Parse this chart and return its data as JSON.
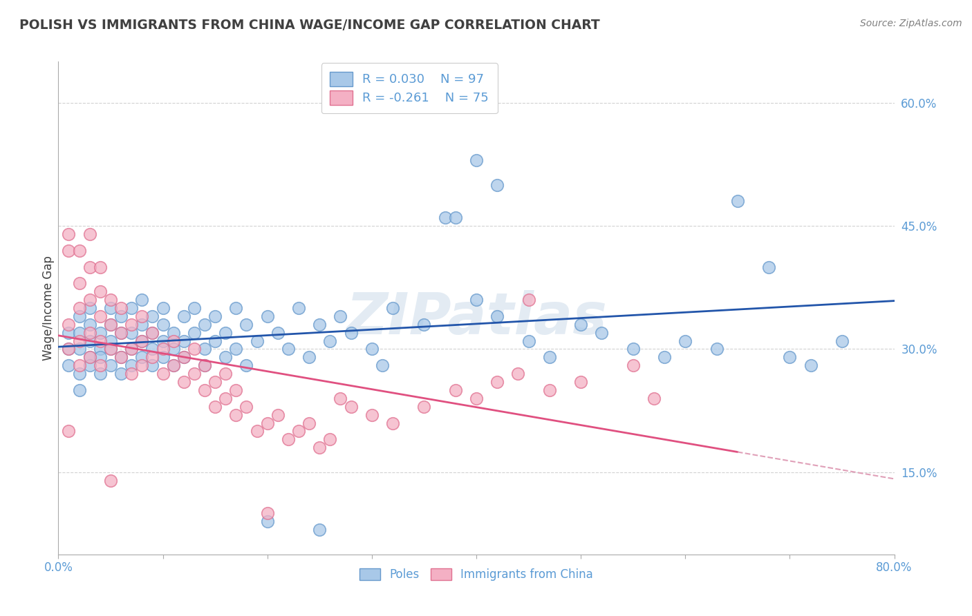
{
  "title": "POLISH VS IMMIGRANTS FROM CHINA WAGE/INCOME GAP CORRELATION CHART",
  "source": "Source: ZipAtlas.com",
  "ylabel": "Wage/Income Gap",
  "x_min": 0.0,
  "x_max": 0.8,
  "y_min": 0.05,
  "y_max": 0.65,
  "x_ticks": [
    0.0,
    0.1,
    0.2,
    0.3,
    0.4,
    0.5,
    0.6,
    0.7,
    0.8
  ],
  "x_tick_labels": [
    "0.0%",
    "",
    "",
    "",
    "",
    "",
    "",
    "",
    "80.0%"
  ],
  "y_ticks": [
    0.15,
    0.3,
    0.45,
    0.6
  ],
  "y_tick_labels": [
    "15.0%",
    "30.0%",
    "45.0%",
    "60.0%"
  ],
  "legend_labels": [
    "Poles",
    "Immigrants from China"
  ],
  "blue_color": "#a8c8e8",
  "pink_color": "#f4b0c4",
  "blue_edge_color": "#6699cc",
  "pink_edge_color": "#e07090",
  "blue_line_color": "#2255aa",
  "pink_line_color": "#e05080",
  "pink_line_dash_color": "#e0a0b8",
  "watermark": "ZIPatlas",
  "R_blue": 0.03,
  "N_blue": 97,
  "R_pink": -0.261,
  "N_pink": 75,
  "blue_scatter": [
    [
      0.01,
      0.28
    ],
    [
      0.01,
      0.3
    ],
    [
      0.01,
      0.32
    ],
    [
      0.02,
      0.27
    ],
    [
      0.02,
      0.3
    ],
    [
      0.02,
      0.32
    ],
    [
      0.02,
      0.34
    ],
    [
      0.02,
      0.25
    ],
    [
      0.03,
      0.29
    ],
    [
      0.03,
      0.31
    ],
    [
      0.03,
      0.28
    ],
    [
      0.03,
      0.33
    ],
    [
      0.03,
      0.35
    ],
    [
      0.04,
      0.3
    ],
    [
      0.04,
      0.27
    ],
    [
      0.04,
      0.32
    ],
    [
      0.04,
      0.29
    ],
    [
      0.05,
      0.31
    ],
    [
      0.05,
      0.33
    ],
    [
      0.05,
      0.28
    ],
    [
      0.05,
      0.35
    ],
    [
      0.05,
      0.3
    ],
    [
      0.06,
      0.32
    ],
    [
      0.06,
      0.29
    ],
    [
      0.06,
      0.34
    ],
    [
      0.06,
      0.27
    ],
    [
      0.07,
      0.3
    ],
    [
      0.07,
      0.32
    ],
    [
      0.07,
      0.35
    ],
    [
      0.07,
      0.28
    ],
    [
      0.08,
      0.31
    ],
    [
      0.08,
      0.33
    ],
    [
      0.08,
      0.29
    ],
    [
      0.08,
      0.36
    ],
    [
      0.09,
      0.3
    ],
    [
      0.09,
      0.32
    ],
    [
      0.09,
      0.28
    ],
    [
      0.09,
      0.34
    ],
    [
      0.1,
      0.31
    ],
    [
      0.1,
      0.29
    ],
    [
      0.1,
      0.33
    ],
    [
      0.1,
      0.35
    ],
    [
      0.11,
      0.3
    ],
    [
      0.11,
      0.32
    ],
    [
      0.11,
      0.28
    ],
    [
      0.12,
      0.34
    ],
    [
      0.12,
      0.31
    ],
    [
      0.12,
      0.29
    ],
    [
      0.13,
      0.32
    ],
    [
      0.13,
      0.35
    ],
    [
      0.14,
      0.3
    ],
    [
      0.14,
      0.28
    ],
    [
      0.14,
      0.33
    ],
    [
      0.15,
      0.31
    ],
    [
      0.15,
      0.34
    ],
    [
      0.16,
      0.29
    ],
    [
      0.16,
      0.32
    ],
    [
      0.17,
      0.35
    ],
    [
      0.17,
      0.3
    ],
    [
      0.18,
      0.28
    ],
    [
      0.18,
      0.33
    ],
    [
      0.19,
      0.31
    ],
    [
      0.2,
      0.34
    ],
    [
      0.21,
      0.32
    ],
    [
      0.22,
      0.3
    ],
    [
      0.23,
      0.35
    ],
    [
      0.24,
      0.29
    ],
    [
      0.25,
      0.33
    ],
    [
      0.26,
      0.31
    ],
    [
      0.27,
      0.34
    ],
    [
      0.28,
      0.32
    ],
    [
      0.3,
      0.3
    ],
    [
      0.31,
      0.28
    ],
    [
      0.32,
      0.35
    ],
    [
      0.35,
      0.33
    ],
    [
      0.37,
      0.46
    ],
    [
      0.38,
      0.46
    ],
    [
      0.4,
      0.36
    ],
    [
      0.42,
      0.34
    ],
    [
      0.45,
      0.31
    ],
    [
      0.47,
      0.29
    ],
    [
      0.5,
      0.33
    ],
    [
      0.52,
      0.32
    ],
    [
      0.55,
      0.3
    ],
    [
      0.58,
      0.29
    ],
    [
      0.6,
      0.31
    ],
    [
      0.63,
      0.3
    ],
    [
      0.65,
      0.48
    ],
    [
      0.68,
      0.4
    ],
    [
      0.7,
      0.29
    ],
    [
      0.72,
      0.28
    ],
    [
      0.4,
      0.53
    ],
    [
      0.42,
      0.5
    ],
    [
      0.2,
      0.09
    ],
    [
      0.25,
      0.08
    ],
    [
      0.75,
      0.31
    ]
  ],
  "pink_scatter": [
    [
      0.01,
      0.3
    ],
    [
      0.01,
      0.33
    ],
    [
      0.01,
      0.42
    ],
    [
      0.01,
      0.44
    ],
    [
      0.02,
      0.28
    ],
    [
      0.02,
      0.31
    ],
    [
      0.02,
      0.35
    ],
    [
      0.02,
      0.38
    ],
    [
      0.02,
      0.42
    ],
    [
      0.03,
      0.29
    ],
    [
      0.03,
      0.32
    ],
    [
      0.03,
      0.36
    ],
    [
      0.03,
      0.4
    ],
    [
      0.03,
      0.44
    ],
    [
      0.04,
      0.28
    ],
    [
      0.04,
      0.31
    ],
    [
      0.04,
      0.34
    ],
    [
      0.04,
      0.37
    ],
    [
      0.04,
      0.4
    ],
    [
      0.05,
      0.3
    ],
    [
      0.05,
      0.33
    ],
    [
      0.05,
      0.36
    ],
    [
      0.06,
      0.29
    ],
    [
      0.06,
      0.32
    ],
    [
      0.06,
      0.35
    ],
    [
      0.07,
      0.3
    ],
    [
      0.07,
      0.33
    ],
    [
      0.07,
      0.27
    ],
    [
      0.08,
      0.31
    ],
    [
      0.08,
      0.28
    ],
    [
      0.08,
      0.34
    ],
    [
      0.09,
      0.29
    ],
    [
      0.09,
      0.32
    ],
    [
      0.1,
      0.3
    ],
    [
      0.1,
      0.27
    ],
    [
      0.11,
      0.28
    ],
    [
      0.11,
      0.31
    ],
    [
      0.12,
      0.29
    ],
    [
      0.12,
      0.26
    ],
    [
      0.13,
      0.27
    ],
    [
      0.13,
      0.3
    ],
    [
      0.14,
      0.25
    ],
    [
      0.14,
      0.28
    ],
    [
      0.15,
      0.26
    ],
    [
      0.15,
      0.23
    ],
    [
      0.16,
      0.24
    ],
    [
      0.16,
      0.27
    ],
    [
      0.17,
      0.25
    ],
    [
      0.17,
      0.22
    ],
    [
      0.18,
      0.23
    ],
    [
      0.19,
      0.2
    ],
    [
      0.2,
      0.21
    ],
    [
      0.21,
      0.22
    ],
    [
      0.22,
      0.19
    ],
    [
      0.23,
      0.2
    ],
    [
      0.24,
      0.21
    ],
    [
      0.25,
      0.18
    ],
    [
      0.26,
      0.19
    ],
    [
      0.27,
      0.24
    ],
    [
      0.28,
      0.23
    ],
    [
      0.3,
      0.22
    ],
    [
      0.32,
      0.21
    ],
    [
      0.35,
      0.23
    ],
    [
      0.38,
      0.25
    ],
    [
      0.4,
      0.24
    ],
    [
      0.42,
      0.26
    ],
    [
      0.44,
      0.27
    ],
    [
      0.47,
      0.25
    ],
    [
      0.5,
      0.26
    ],
    [
      0.55,
      0.28
    ],
    [
      0.57,
      0.24
    ],
    [
      0.01,
      0.2
    ],
    [
      0.05,
      0.14
    ],
    [
      0.2,
      0.1
    ],
    [
      0.45,
      0.36
    ]
  ],
  "bg_color": "#ffffff",
  "grid_color": "#cccccc",
  "tick_label_color": "#5b9bd5",
  "title_color": "#404040",
  "source_color": "#808080"
}
